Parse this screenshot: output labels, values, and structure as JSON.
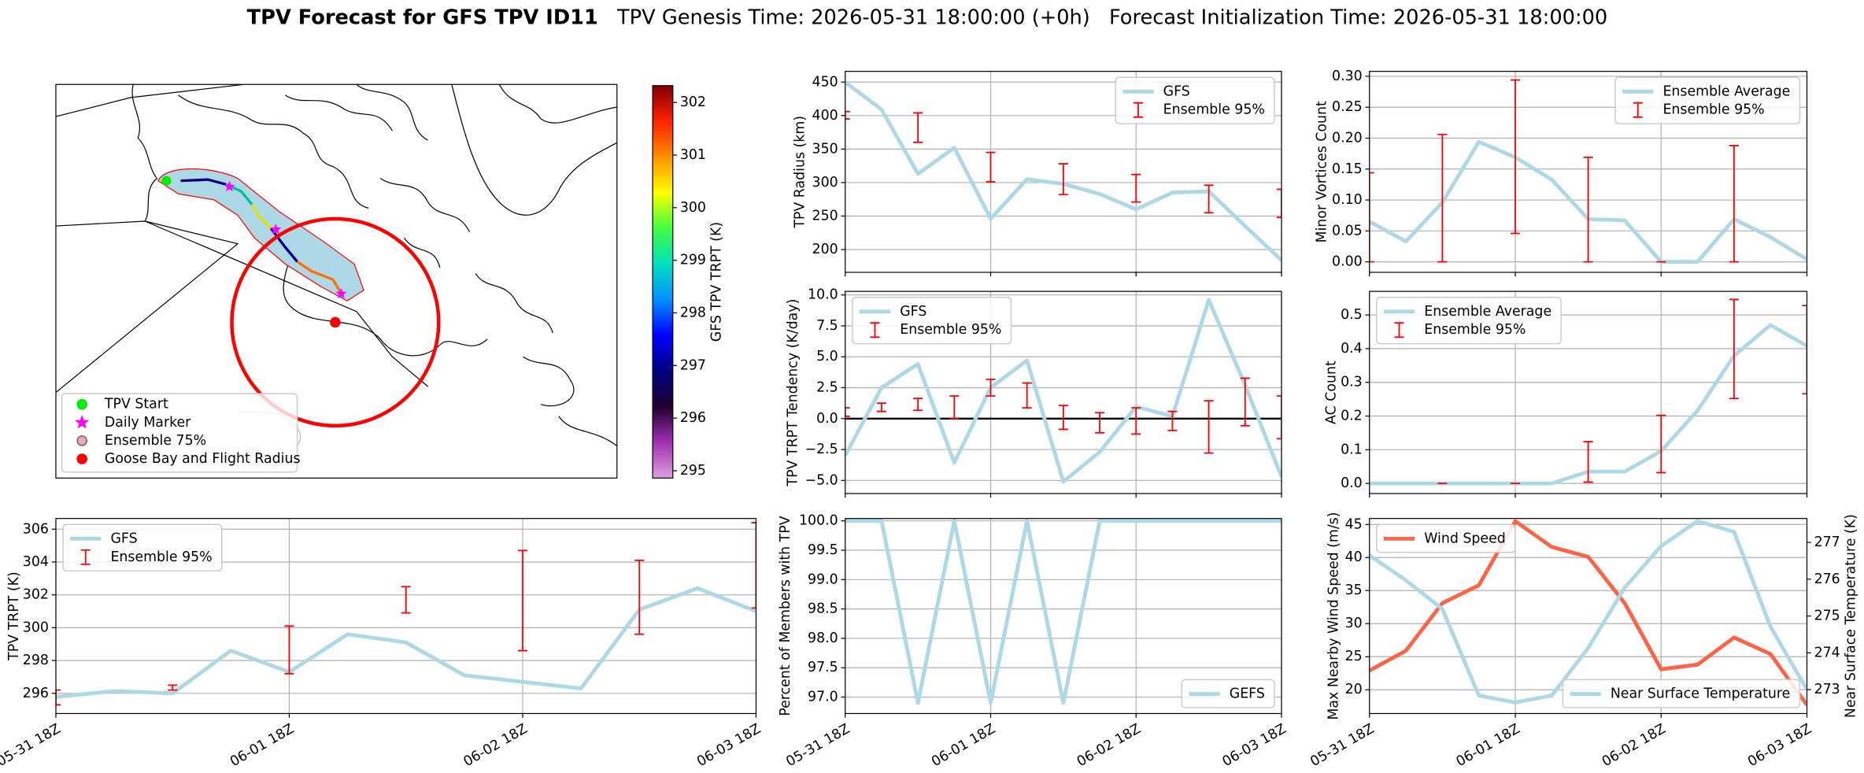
{
  "suptitle": {
    "main": "TPV Forecast for GFS TPV ID11",
    "genesis": "TPV Genesis Time: 2026-05-31 18:00:00 (+0h)",
    "init": "Forecast Initialization Time: 2026-05-31 18:00:00"
  },
  "chart_data": [
    {
      "type": "map",
      "legend": [
        {
          "label": "TPV Start",
          "marker": "circle",
          "color": "#00ee00",
          "edge": "#00ee00"
        },
        {
          "label": "Daily Marker",
          "marker": "star",
          "color": "#ff00ff",
          "edge": "#ff00ff"
        },
        {
          "label": "Ensemble 75%",
          "marker": "circle",
          "color": "#d9b0c0",
          "edge": "#a05050"
        },
        {
          "label": "Goose Bay and Flight Radius",
          "marker": "circle",
          "color": "#ff0000",
          "edge": "#ff0000"
        }
      ],
      "colorbar": {
        "label": "GFS TPV TRPT (K)",
        "lim": [
          294.86,
          302.32
        ],
        "ticks": [
          295,
          296,
          297,
          298,
          299,
          300,
          301,
          302
        ],
        "colormap": [
          "#dda0dd",
          "#a030b0",
          "#200030",
          "#000080",
          "#0000ff",
          "#0090ff",
          "#00e0c0",
          "#40ff40",
          "#ffff00",
          "#ff9000",
          "#ff2000",
          "#800000"
        ]
      }
    },
    {
      "type": "line",
      "ylabel": "TPV Radius (km)",
      "grid": true,
      "legend": "upper right",
      "ylim": [
        166,
        466
      ],
      "yticks": [
        200,
        250,
        300,
        350,
        400,
        450
      ],
      "series": [
        {
          "name": "GFS",
          "color": "#add8e6",
          "values": [
            450,
            409,
            313,
            352,
            246,
            305,
            298,
            283,
            260,
            285,
            287,
            235,
            184
          ]
        }
      ],
      "errorbars": {
        "name": "Ensemble 95%",
        "color": "#ff0000",
        "low": [
          395,
          null,
          360,
          null,
          301,
          null,
          282,
          null,
          271,
          null,
          255,
          null,
          248
        ],
        "high": [
          406,
          null,
          404,
          null,
          345,
          null,
          328,
          null,
          312,
          null,
          296,
          null,
          290
        ]
      }
    },
    {
      "type": "line",
      "ylabel": "Minor Vortices Count",
      "grid": true,
      "legend": "upper right",
      "ylim": [
        -0.017,
        0.308
      ],
      "yticks": [
        {
          "value": 0,
          "label": "0.00"
        },
        {
          "value": 0.05,
          "label": "0.05"
        },
        {
          "value": 0.1,
          "label": "0.10"
        },
        {
          "value": 0.15,
          "label": "0.15"
        },
        {
          "value": 0.2,
          "label": "0.20"
        },
        {
          "value": 0.25,
          "label": "0.25"
        },
        {
          "value": 0.3,
          "label": "0.30"
        }
      ],
      "series": [
        {
          "name": "Ensemble Average",
          "color": "#add8e6",
          "values": [
            0.065,
            0.033,
            0.096,
            0.194,
            0.169,
            0.133,
            0.069,
            0.067,
            0,
            0,
            0.069,
            0.04,
            0.004
          ]
        }
      ],
      "errorbars": {
        "name": "Ensemble 95%",
        "color": "#ff0000",
        "low": [
          0,
          null,
          0,
          null,
          0.046,
          null,
          0,
          null,
          0,
          null,
          0,
          null,
          null
        ],
        "high": [
          0.144,
          null,
          0.206,
          null,
          0.294,
          null,
          0.169,
          null,
          0,
          null,
          0.188,
          null,
          null
        ]
      }
    },
    {
      "type": "line",
      "ylabel": "TPV TRPT Tendency (K/day)",
      "grid": true,
      "legend": "upper left",
      "ylim": [
        -6.06,
        10.29
      ],
      "yticks": [
        {
          "value": -5,
          "label": "−5.0"
        },
        {
          "value": -2.5,
          "label": "−2.5"
        },
        {
          "value": 0,
          "label": "0.0"
        },
        {
          "value": 2.5,
          "label": "2.5"
        },
        {
          "value": 5,
          "label": "5.0"
        },
        {
          "value": 7.5,
          "label": "7.5"
        },
        {
          "value": 10,
          "label": "10.0"
        }
      ],
      "hline": {
        "value": 0,
        "color": "#000000"
      },
      "series": [
        {
          "name": "GFS",
          "color": "#add8e6",
          "values": [
            -2.98,
            2.5,
            4.42,
            -3.56,
            2.5,
            4.71,
            -5.1,
            -2.7,
            0.96,
            0.19,
            9.6,
            2.7,
            -4.7
          ]
        }
      ],
      "errorbars": {
        "name": "Ensemble 95%",
        "color": "#ff0000",
        "low": [
          0.19,
          0.58,
          0.67,
          0,
          1.83,
          0.87,
          -0.87,
          -1.15,
          -1.25,
          -0.96,
          -2.79,
          -0.58,
          -1.63
        ],
        "high": [
          0.87,
          1.25,
          1.63,
          1.83,
          3.17,
          2.88,
          1.06,
          0.48,
          0.87,
          0.58,
          1.44,
          3.27,
          1.83
        ]
      }
    },
    {
      "type": "line",
      "ylabel": "AC Count",
      "grid": true,
      "legend": "upper left",
      "ylim": [
        -0.03,
        0.57
      ],
      "yticks": [
        {
          "value": 0,
          "label": "0.0"
        },
        {
          "value": 0.1,
          "label": "0.1"
        },
        {
          "value": 0.2,
          "label": "0.2"
        },
        {
          "value": 0.3,
          "label": "0.3"
        },
        {
          "value": 0.4,
          "label": "0.4"
        },
        {
          "value": 0.5,
          "label": "0.5"
        }
      ],
      "series": [
        {
          "name": "Ensemble Average",
          "color": "#add8e6",
          "values": [
            0,
            0,
            0,
            0,
            0,
            0,
            0.035,
            0.035,
            0.096,
            0.216,
            0.379,
            0.47,
            0.408
          ]
        }
      ],
      "errorbars": {
        "name": "Ensemble 95%",
        "color": "#ff0000",
        "low": [
          null,
          null,
          0,
          null,
          0,
          null,
          0.004,
          null,
          0.032,
          null,
          0.252,
          null,
          0.266
        ],
        "high": [
          null,
          null,
          0,
          null,
          0,
          null,
          0.124,
          null,
          0.202,
          null,
          0.546,
          null,
          0.528
        ]
      }
    },
    {
      "type": "line",
      "ylabel": "TPV TRPT (K)",
      "grid": true,
      "legend": "upper left",
      "categories": [
        "05-31 18Z",
        null,
        null,
        null,
        "06-01 18Z",
        null,
        null,
        null,
        "06-02 18Z",
        null,
        null,
        null,
        "06-03 18Z"
      ],
      "ylim": [
        294.77,
        306.65
      ],
      "yticks": [
        296,
        298,
        300,
        302,
        304,
        306
      ],
      "series": [
        {
          "name": "GFS",
          "color": "#add8e6",
          "values": [
            295.78,
            296.14,
            296,
            298.6,
            297.3,
            299.6,
            299.1,
            297.1,
            296.7,
            296.3,
            301.1,
            302.4,
            301.0
          ]
        }
      ],
      "errorbars": {
        "name": "Ensemble 95%",
        "color": "#ff0000",
        "low": [
          295.3,
          null,
          296.2,
          null,
          297.2,
          null,
          300.9,
          null,
          298.6,
          null,
          299.6,
          null,
          301.2
        ],
        "high": [
          296.2,
          null,
          296.5,
          null,
          300.1,
          null,
          302.5,
          null,
          304.7,
          null,
          304.1,
          null,
          306.4
        ]
      }
    },
    {
      "type": "line",
      "ylabel": "Percent of Members with TPV",
      "grid": true,
      "legend": "lower right",
      "categories": [
        "05-31 18Z",
        null,
        null,
        null,
        "06-01 18Z",
        null,
        null,
        null,
        "06-02 18Z",
        null,
        null,
        null,
        "06-03 18Z"
      ],
      "ylim": [
        96.72,
        100.04
      ],
      "yticks": [
        {
          "value": 97,
          "label": "97.0"
        },
        {
          "value": 97.5,
          "label": "97.5"
        },
        {
          "value": 98,
          "label": "98.0"
        },
        {
          "value": 98.5,
          "label": "98.5"
        },
        {
          "value": 99,
          "label": "99.0"
        },
        {
          "value": 99.5,
          "label": "99.5"
        },
        {
          "value": 100,
          "label": "100.0"
        }
      ],
      "series": [
        {
          "name": "GEFS",
          "color": "#add8e6",
          "values": [
            100,
            100,
            96.9,
            100,
            96.9,
            100,
            96.9,
            100,
            100,
            100,
            100,
            100,
            100
          ]
        }
      ]
    },
    {
      "type": "line",
      "ylabel": "Max Nearby Wind Speed (m/s)",
      "y2label": "Near Surface Temperature (K)",
      "grid": true,
      "ycolor": "#ff6347",
      "y2color": "#4169e1",
      "categories": [
        "05-31 18Z",
        null,
        null,
        null,
        "06-01 18Z",
        null,
        null,
        null,
        "06-02 18Z",
        null,
        null,
        null,
        "06-03 18Z"
      ],
      "ylim": [
        16.4,
        45.9
      ],
      "yticks": [
        20,
        25,
        30,
        35,
        40,
        45
      ],
      "y2lim": [
        272.35,
        277.65
      ],
      "y2ticks": [
        273,
        274,
        275,
        276,
        277
      ],
      "series": [
        {
          "name": "Wind Speed",
          "color": "#ff6347",
          "legend": "upper left",
          "values": [
            22.9,
            25.9,
            33.1,
            35.8,
            45.5,
            41.6,
            40.1,
            33.1,
            23.1,
            23.8,
            27.9,
            25.4,
            17.7
          ]
        },
        {
          "name": "Near Surface Temperature",
          "color": "#add8e6",
          "axis": "y2",
          "legend": "lower right",
          "values": [
            276.65,
            275.97,
            275.19,
            272.84,
            272.65,
            272.84,
            274.13,
            275.77,
            276.9,
            277.58,
            277.29,
            274.71,
            273.0
          ]
        }
      ]
    }
  ]
}
